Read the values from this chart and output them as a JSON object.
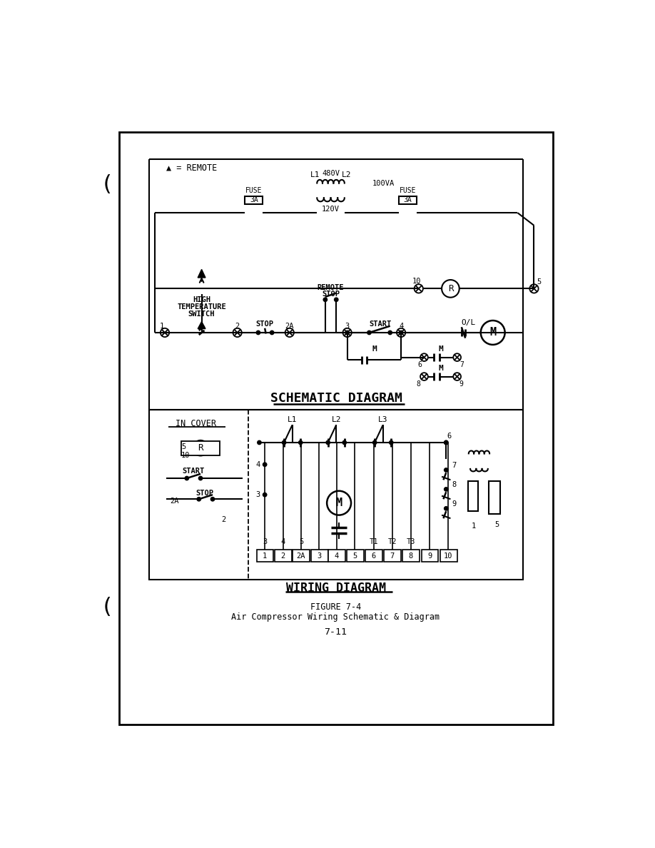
{
  "bg_color": "#ffffff",
  "title": "FIGURE 7-4",
  "caption": "Air Compressor Wiring Schematic & Diagram",
  "page_number": "7-11"
}
